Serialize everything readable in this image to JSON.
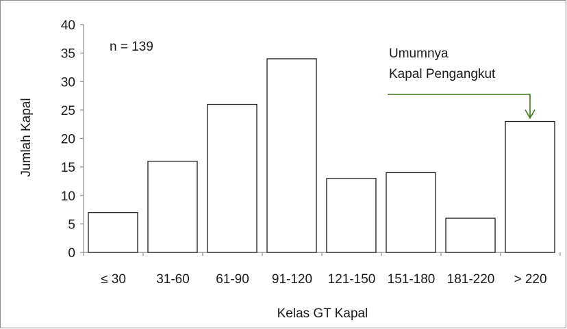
{
  "chart_data": {
    "type": "bar",
    "categories": [
      "≤ 30",
      "31-60",
      "61-90",
      "91-120",
      "121-150",
      "151-180",
      "181-220",
      "> 220"
    ],
    "values": [
      7,
      16,
      26,
      34,
      13,
      14,
      6,
      23
    ],
    "xlabel": "Kelas GT Kapal",
    "ylabel": "Jumlah Kapal",
    "ylim": [
      0,
      40
    ],
    "yticks": [
      0,
      5,
      10,
      15,
      20,
      25,
      30,
      35,
      40
    ],
    "grid": false,
    "annotations": {
      "sample_size": "n = 139",
      "callout_line1": "Umumnya",
      "callout_line2": "Kapal Pengangkut",
      "callout_target_category": "> 220"
    },
    "colors": {
      "bar_fill": "#ffffff",
      "bar_stroke": "#1a1a1a",
      "arrow": "#3a7a1a"
    }
  }
}
